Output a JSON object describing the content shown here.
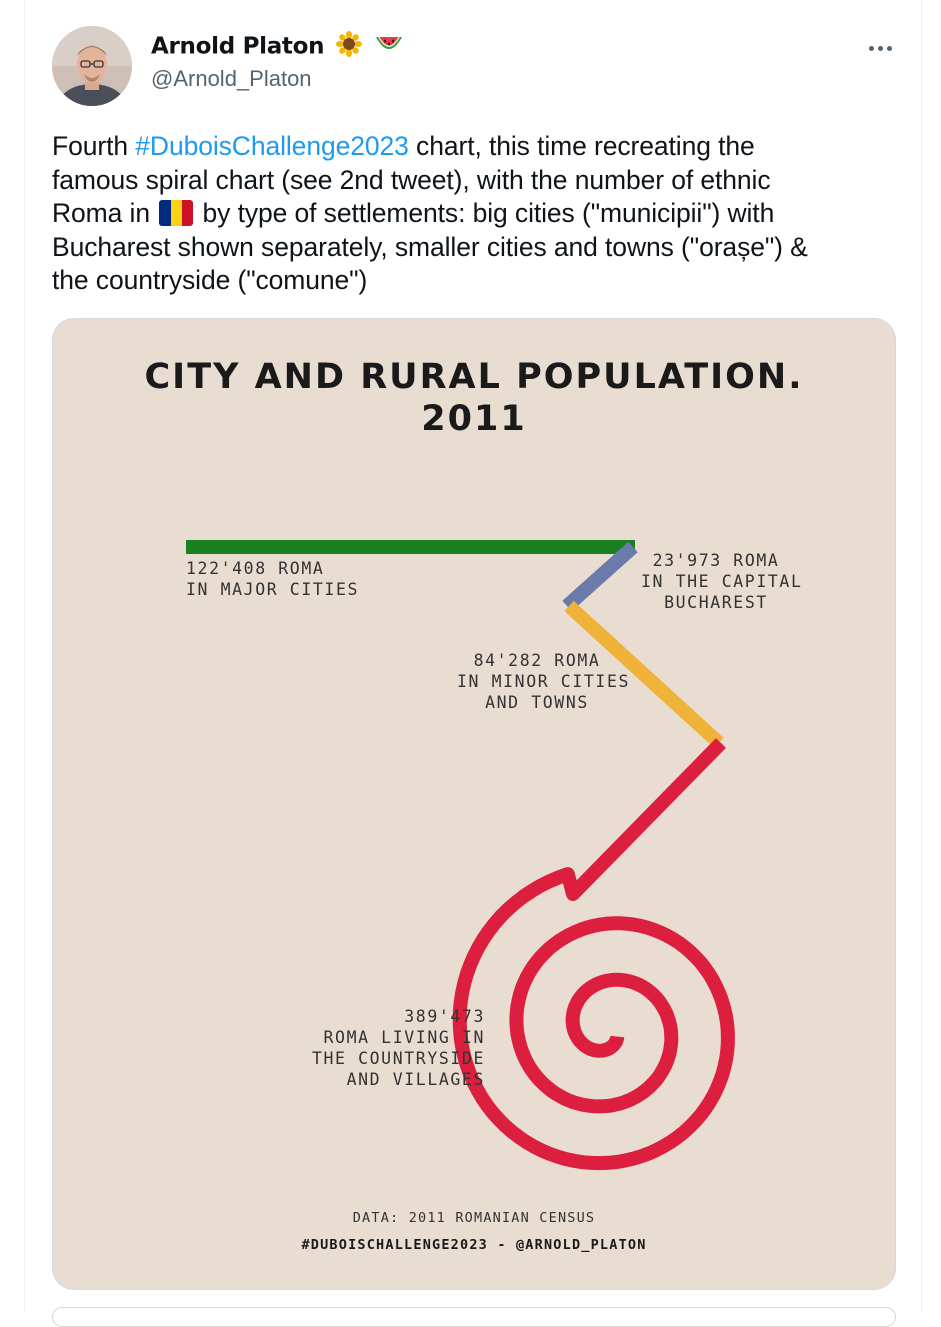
{
  "author": {
    "name": "Arnold Platon",
    "handle": "@Arnold_Platon",
    "badges": [
      "sunflower-emoji",
      "watermelon-emoji"
    ]
  },
  "menu_icon": "more-dots-icon",
  "tweet": {
    "line1_pre": "Fourth ",
    "hashtag": "#DuboisChallenge2023",
    "line1_post": " chart, this time recreating the",
    "line2": "famous spiral chart (see 2nd tweet), with the number of ethnic",
    "line3_pre": "Roma in ",
    "flag": "romania-flag-emoji",
    "line3_post": " by type of settlements: big cities (\"municipii\") with",
    "line4": "Bucharest shown separately, smaller cities and towns (\"orașe\") &",
    "line5": "the countryside (\"comune\")"
  },
  "chart": {
    "title_line1": "CITY AND RURAL POPULATION.",
    "title_line2": "2011",
    "label_major": [
      "122'408 ROMA",
      "IN MAJOR CITIES"
    ],
    "label_capital": [
      "23'973 ROMA",
      "IN THE CAPITAL",
      "BUCHAREST"
    ],
    "label_minor": [
      "84'282 ROMA",
      "IN MINOR CITIES",
      "AND TOWNS"
    ],
    "label_rural": [
      "389'473",
      "ROMA LIVING IN",
      "THE COUNTRYSIDE",
      "AND VILLAGES"
    ],
    "footer_source": "DATA: 2011 ROMANIAN CENSUS",
    "footer_credit": "#DUBOISCHALLENGE2023 - @ARNOLD_PLATON",
    "colors": {
      "background": "#e9ddd2",
      "major": "#1a7f1f",
      "capital": "#6a7bab",
      "minor": "#f0b33a",
      "rural": "#dc1f3f"
    }
  },
  "chart_data": {
    "type": "spiral",
    "title": "CITY AND RURAL POPULATION. 2011",
    "categories": [
      "IN MAJOR CITIES",
      "IN THE CAPITAL BUCHAREST",
      "IN MINOR CITIES AND TOWNS",
      "ROMA LIVING IN THE COUNTRYSIDE AND VILLAGES"
    ],
    "values": [
      122408,
      23973,
      84282,
      389473
    ],
    "colors": [
      "#1a7f1f",
      "#6a7bab",
      "#f0b33a",
      "#dc1f3f"
    ]
  }
}
